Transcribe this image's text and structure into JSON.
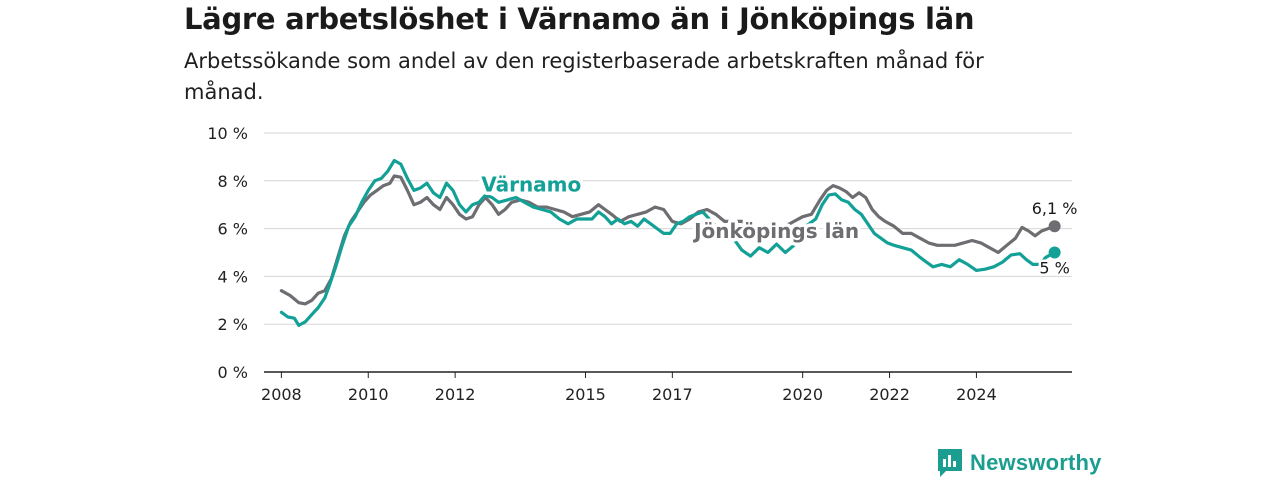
{
  "header": {
    "title": "Lägre arbetslöshet i Värnamo än i Jönköpings län",
    "subtitle": "Arbetssökande som andel av den registerbaserade arbetskraften månad för månad."
  },
  "brand": {
    "name": "Newsworthy",
    "icon": "bar-chart-logo-icon",
    "color": "#1b9e8f"
  },
  "chart_data": {
    "type": "line",
    "xlim": [
      2007.6,
      2026.2
    ],
    "ylim": [
      0,
      10
    ],
    "y_ticks": [
      {
        "value": 0,
        "label": "0 %"
      },
      {
        "value": 2,
        "label": "2 %"
      },
      {
        "value": 4,
        "label": "4 %"
      },
      {
        "value": 6,
        "label": "6 %"
      },
      {
        "value": 8,
        "label": "8 %"
      },
      {
        "value": 10,
        "label": "10 %"
      }
    ],
    "x_ticks": [
      {
        "value": 2008,
        "label": "2008"
      },
      {
        "value": 2010,
        "label": "2010"
      },
      {
        "value": 2012,
        "label": "2012"
      },
      {
        "value": 2015,
        "label": "2015"
      },
      {
        "value": 2017,
        "label": "2017"
      },
      {
        "value": 2020,
        "label": "2020"
      },
      {
        "value": 2022,
        "label": "2022"
      },
      {
        "value": 2024,
        "label": "2024"
      }
    ],
    "grid": "horizontal",
    "series": [
      {
        "name": "Jönköpings län",
        "color": "#6d6d72",
        "end_label": "6,1 %",
        "points": [
          [
            2008.0,
            3.4
          ],
          [
            2008.2,
            3.2
          ],
          [
            2008.4,
            2.9
          ],
          [
            2008.55,
            2.85
          ],
          [
            2008.7,
            3.0
          ],
          [
            2008.85,
            3.3
          ],
          [
            2009.0,
            3.4
          ],
          [
            2009.15,
            3.9
          ],
          [
            2009.3,
            4.8
          ],
          [
            2009.45,
            5.7
          ],
          [
            2009.6,
            6.3
          ],
          [
            2009.75,
            6.7
          ],
          [
            2009.9,
            7.1
          ],
          [
            2010.05,
            7.4
          ],
          [
            2010.2,
            7.6
          ],
          [
            2010.35,
            7.8
          ],
          [
            2010.5,
            7.9
          ],
          [
            2010.6,
            8.2
          ],
          [
            2010.75,
            8.15
          ],
          [
            2010.9,
            7.6
          ],
          [
            2011.05,
            7.0
          ],
          [
            2011.2,
            7.1
          ],
          [
            2011.35,
            7.3
          ],
          [
            2011.5,
            7.0
          ],
          [
            2011.65,
            6.8
          ],
          [
            2011.8,
            7.3
          ],
          [
            2011.95,
            7.0
          ],
          [
            2012.1,
            6.6
          ],
          [
            2012.25,
            6.4
          ],
          [
            2012.4,
            6.5
          ],
          [
            2012.55,
            7.0
          ],
          [
            2012.7,
            7.3
          ],
          [
            2012.85,
            7.0
          ],
          [
            2013.0,
            6.6
          ],
          [
            2013.15,
            6.8
          ],
          [
            2013.3,
            7.1
          ],
          [
            2013.5,
            7.2
          ],
          [
            2013.7,
            7.1
          ],
          [
            2013.9,
            6.9
          ],
          [
            2014.1,
            6.9
          ],
          [
            2014.3,
            6.8
          ],
          [
            2014.5,
            6.7
          ],
          [
            2014.7,
            6.5
          ],
          [
            2014.9,
            6.6
          ],
          [
            2015.1,
            6.7
          ],
          [
            2015.3,
            7.0
          ],
          [
            2015.45,
            6.8
          ],
          [
            2015.6,
            6.6
          ],
          [
            2015.8,
            6.3
          ],
          [
            2016.0,
            6.5
          ],
          [
            2016.2,
            6.6
          ],
          [
            2016.4,
            6.7
          ],
          [
            2016.6,
            6.9
          ],
          [
            2016.8,
            6.8
          ],
          [
            2017.0,
            6.3
          ],
          [
            2017.2,
            6.2
          ],
          [
            2017.4,
            6.4
          ],
          [
            2017.6,
            6.7
          ],
          [
            2017.8,
            6.8
          ],
          [
            2018.0,
            6.6
          ],
          [
            2018.2,
            6.3
          ],
          [
            2018.4,
            6.3
          ],
          [
            2018.6,
            6.3
          ],
          [
            2018.8,
            6.1
          ],
          [
            2019.0,
            6.0
          ],
          [
            2019.2,
            6.0
          ],
          [
            2019.4,
            6.0
          ],
          [
            2019.6,
            6.1
          ],
          [
            2019.8,
            6.3
          ],
          [
            2020.0,
            6.5
          ],
          [
            2020.2,
            6.6
          ],
          [
            2020.4,
            7.2
          ],
          [
            2020.55,
            7.6
          ],
          [
            2020.7,
            7.8
          ],
          [
            2020.85,
            7.7
          ],
          [
            2021.0,
            7.55
          ],
          [
            2021.15,
            7.3
          ],
          [
            2021.3,
            7.5
          ],
          [
            2021.45,
            7.3
          ],
          [
            2021.6,
            6.8
          ],
          [
            2021.75,
            6.5
          ],
          [
            2021.9,
            6.3
          ],
          [
            2022.1,
            6.1
          ],
          [
            2022.3,
            5.8
          ],
          [
            2022.5,
            5.8
          ],
          [
            2022.7,
            5.6
          ],
          [
            2022.9,
            5.4
          ],
          [
            2023.1,
            5.3
          ],
          [
            2023.3,
            5.3
          ],
          [
            2023.5,
            5.3
          ],
          [
            2023.7,
            5.4
          ],
          [
            2023.9,
            5.5
          ],
          [
            2024.1,
            5.4
          ],
          [
            2024.3,
            5.2
          ],
          [
            2024.5,
            5.0
          ],
          [
            2024.7,
            5.3
          ],
          [
            2024.9,
            5.6
          ],
          [
            2025.05,
            6.05
          ],
          [
            2025.2,
            5.9
          ],
          [
            2025.35,
            5.7
          ],
          [
            2025.5,
            5.9
          ],
          [
            2025.65,
            6.0
          ],
          [
            2025.8,
            6.1
          ]
        ]
      },
      {
        "name": "Värnamo",
        "color": "#13a197",
        "end_label": "5 %",
        "points": [
          [
            2008.0,
            2.5
          ],
          [
            2008.15,
            2.3
          ],
          [
            2008.3,
            2.25
          ],
          [
            2008.4,
            1.95
          ],
          [
            2008.55,
            2.1
          ],
          [
            2008.7,
            2.4
          ],
          [
            2008.85,
            2.7
          ],
          [
            2009.0,
            3.1
          ],
          [
            2009.1,
            3.6
          ],
          [
            2009.25,
            4.4
          ],
          [
            2009.4,
            5.3
          ],
          [
            2009.55,
            6.1
          ],
          [
            2009.7,
            6.5
          ],
          [
            2009.85,
            7.1
          ],
          [
            2010.0,
            7.6
          ],
          [
            2010.15,
            8.0
          ],
          [
            2010.3,
            8.1
          ],
          [
            2010.45,
            8.4
          ],
          [
            2010.6,
            8.85
          ],
          [
            2010.75,
            8.7
          ],
          [
            2010.9,
            8.1
          ],
          [
            2011.05,
            7.6
          ],
          [
            2011.2,
            7.7
          ],
          [
            2011.35,
            7.9
          ],
          [
            2011.5,
            7.5
          ],
          [
            2011.65,
            7.3
          ],
          [
            2011.8,
            7.9
          ],
          [
            2011.95,
            7.6
          ],
          [
            2012.1,
            7.0
          ],
          [
            2012.25,
            6.7
          ],
          [
            2012.4,
            7.0
          ],
          [
            2012.55,
            7.1
          ],
          [
            2012.7,
            7.4
          ],
          [
            2012.85,
            7.3
          ],
          [
            2013.0,
            7.1
          ],
          [
            2013.2,
            7.2
          ],
          [
            2013.4,
            7.3
          ],
          [
            2013.6,
            7.1
          ],
          [
            2013.8,
            6.9
          ],
          [
            2014.0,
            6.8
          ],
          [
            2014.2,
            6.7
          ],
          [
            2014.4,
            6.4
          ],
          [
            2014.6,
            6.2
          ],
          [
            2014.8,
            6.4
          ],
          [
            2015.0,
            6.4
          ],
          [
            2015.15,
            6.4
          ],
          [
            2015.3,
            6.7
          ],
          [
            2015.45,
            6.5
          ],
          [
            2015.6,
            6.2
          ],
          [
            2015.75,
            6.4
          ],
          [
            2015.9,
            6.2
          ],
          [
            2016.05,
            6.3
          ],
          [
            2016.2,
            6.1
          ],
          [
            2016.35,
            6.4
          ],
          [
            2016.5,
            6.2
          ],
          [
            2016.65,
            6.0
          ],
          [
            2016.8,
            5.8
          ],
          [
            2016.95,
            5.8
          ],
          [
            2017.1,
            6.2
          ],
          [
            2017.25,
            6.3
          ],
          [
            2017.4,
            6.5
          ],
          [
            2017.55,
            6.6
          ],
          [
            2017.7,
            6.7
          ],
          [
            2017.85,
            6.4
          ],
          [
            2018.0,
            6.1
          ],
          [
            2018.2,
            5.9
          ],
          [
            2018.4,
            5.6
          ],
          [
            2018.6,
            5.1
          ],
          [
            2018.8,
            4.85
          ],
          [
            2019.0,
            5.2
          ],
          [
            2019.2,
            5.0
          ],
          [
            2019.4,
            5.35
          ],
          [
            2019.6,
            5.0
          ],
          [
            2019.8,
            5.3
          ],
          [
            2020.0,
            6.0
          ],
          [
            2020.15,
            6.2
          ],
          [
            2020.3,
            6.4
          ],
          [
            2020.45,
            7.0
          ],
          [
            2020.6,
            7.4
          ],
          [
            2020.75,
            7.45
          ],
          [
            2020.9,
            7.2
          ],
          [
            2021.05,
            7.1
          ],
          [
            2021.2,
            6.8
          ],
          [
            2021.35,
            6.6
          ],
          [
            2021.5,
            6.2
          ],
          [
            2021.65,
            5.8
          ],
          [
            2021.8,
            5.6
          ],
          [
            2021.95,
            5.4
          ],
          [
            2022.1,
            5.3
          ],
          [
            2022.3,
            5.2
          ],
          [
            2022.5,
            5.1
          ],
          [
            2022.7,
            4.8
          ],
          [
            2022.85,
            4.6
          ],
          [
            2023.0,
            4.4
          ],
          [
            2023.2,
            4.5
          ],
          [
            2023.4,
            4.4
          ],
          [
            2023.6,
            4.7
          ],
          [
            2023.8,
            4.5
          ],
          [
            2024.0,
            4.25
          ],
          [
            2024.2,
            4.3
          ],
          [
            2024.4,
            4.4
          ],
          [
            2024.6,
            4.6
          ],
          [
            2024.8,
            4.9
          ],
          [
            2025.0,
            4.95
          ],
          [
            2025.15,
            4.7
          ],
          [
            2025.3,
            4.5
          ],
          [
            2025.45,
            4.5
          ],
          [
            2025.6,
            4.8
          ],
          [
            2025.8,
            5.0
          ]
        ]
      }
    ],
    "inline_labels": [
      {
        "series": "Värnamo",
        "text": "Värnamo",
        "x": 2012.6,
        "y": 7.55
      },
      {
        "series": "Jönköpings län",
        "text": "Jönköpings län",
        "x": 2017.5,
        "y": 5.6
      }
    ]
  }
}
